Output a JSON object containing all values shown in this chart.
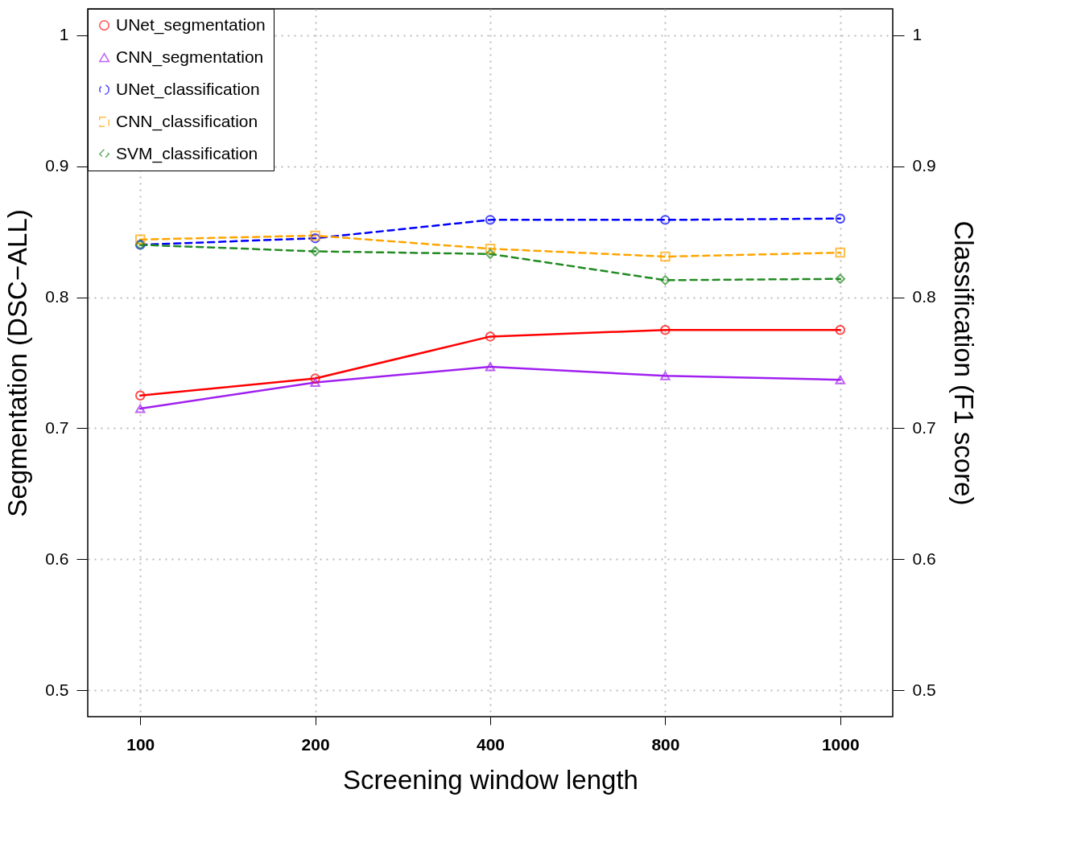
{
  "chart_data": {
    "type": "line",
    "xlabel": "Screening window length",
    "ylabel": "Segmentation (DSC−ALL)",
    "y2label": "Classification (F1 score)",
    "categories": [
      "100",
      "200",
      "400",
      "800",
      "1000"
    ],
    "ylim": [
      0.48,
      1.02
    ],
    "yticks": [
      0.5,
      0.6,
      0.7,
      0.8,
      0.9,
      1
    ],
    "y2lim": [
      0.48,
      1.02
    ],
    "y2ticks": [
      0.5,
      0.6,
      0.7,
      0.8,
      0.9,
      1
    ],
    "grid": true,
    "legend": "top left",
    "series": [
      {
        "name": "UNet_segmentation",
        "color": "#ff0000",
        "marker": "circle",
        "line_style": "solid",
        "values": [
          0.725,
          0.738,
          0.77,
          0.775,
          0.775
        ]
      },
      {
        "name": "CNN_segmentation",
        "color": "#a020f0",
        "marker": "triangle",
        "line_style": "solid",
        "values": [
          0.715,
          0.735,
          0.747,
          0.74,
          0.737
        ]
      },
      {
        "name": "UNet_classification",
        "color": "#0000ff",
        "marker": "circle",
        "line_style": "dashed",
        "axis": "y2",
        "values": [
          0.84,
          0.845,
          0.859,
          0.859,
          0.86
        ]
      },
      {
        "name": "CNN_classification",
        "color": "#ffa500",
        "marker": "square",
        "line_style": "dashed",
        "axis": "y2",
        "values": [
          0.844,
          0.847,
          0.837,
          0.831,
          0.834
        ]
      },
      {
        "name": "SVM_classification",
        "color": "#228b22",
        "marker": "diamond",
        "line_style": "dashed",
        "axis": "y2",
        "values": [
          0.84,
          0.835,
          0.833,
          0.813,
          0.814
        ]
      }
    ]
  }
}
